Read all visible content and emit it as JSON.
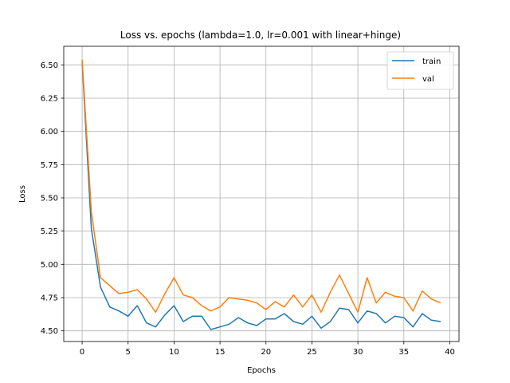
{
  "chart_data": {
    "type": "line",
    "title": "Loss vs. epochs (lambda=1.0, lr=0.001 with linear+hinge)",
    "xlabel": "Epochs",
    "ylabel": "Loss",
    "xlim": [
      -2,
      41
    ],
    "ylim": [
      4.42,
      6.64
    ],
    "xticks": [
      0,
      5,
      10,
      15,
      20,
      25,
      30,
      35,
      40
    ],
    "yticks": [
      4.5,
      4.75,
      5.0,
      5.25,
      5.5,
      5.75,
      6.0,
      6.25,
      6.5
    ],
    "grid": true,
    "legend_position": "top-right",
    "x": [
      0,
      1,
      2,
      3,
      4,
      5,
      6,
      7,
      8,
      9,
      10,
      11,
      12,
      13,
      14,
      15,
      16,
      17,
      18,
      19,
      20,
      21,
      22,
      23,
      24,
      25,
      26,
      27,
      28,
      29,
      30,
      31,
      32,
      33,
      34,
      35,
      36,
      37,
      38,
      39
    ],
    "series": [
      {
        "name": "train",
        "color": "#1f77b4",
        "values": [
          6.52,
          5.27,
          4.83,
          4.68,
          4.65,
          4.61,
          4.69,
          4.56,
          4.53,
          4.62,
          4.69,
          4.57,
          4.61,
          4.61,
          4.51,
          4.53,
          4.55,
          4.6,
          4.56,
          4.54,
          4.59,
          4.59,
          4.63,
          4.57,
          4.55,
          4.61,
          4.52,
          4.57,
          4.67,
          4.66,
          4.56,
          4.65,
          4.63,
          4.56,
          4.61,
          4.6,
          4.53,
          4.63,
          4.58,
          4.57
        ]
      },
      {
        "name": "val",
        "color": "#ff7f0e",
        "values": [
          6.54,
          5.4,
          4.9,
          4.84,
          4.78,
          4.79,
          4.81,
          4.74,
          4.64,
          4.78,
          4.9,
          4.77,
          4.75,
          4.69,
          4.65,
          4.68,
          4.75,
          4.74,
          4.73,
          4.71,
          4.66,
          4.72,
          4.68,
          4.77,
          4.68,
          4.77,
          4.64,
          4.79,
          4.92,
          4.78,
          4.64,
          4.9,
          4.71,
          4.79,
          4.76,
          4.75,
          4.65,
          4.8,
          4.74,
          4.71
        ]
      }
    ]
  }
}
